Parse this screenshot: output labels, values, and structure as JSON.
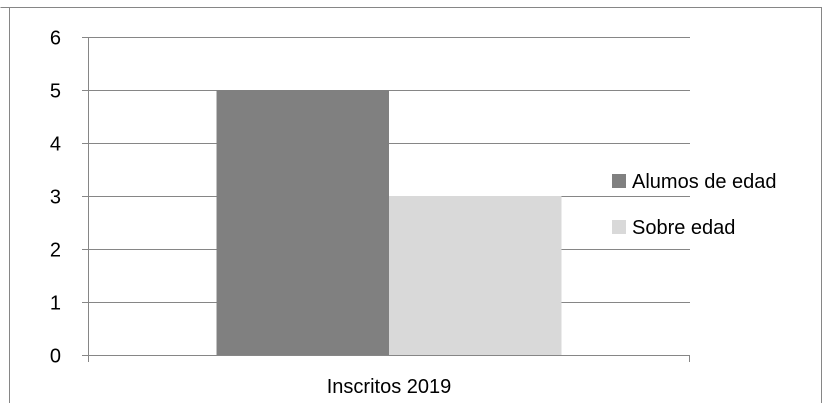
{
  "chart_data": {
    "type": "bar",
    "categories": [
      "Inscritos 2019"
    ],
    "series": [
      {
        "name": "Alumos de edad",
        "values": [
          5
        ],
        "color": "#808080"
      },
      {
        "name": "Sobre edad",
        "values": [
          3
        ],
        "color": "#d9d9d9"
      }
    ],
    "title": "",
    "xlabel": "",
    "ylabel": "",
    "ylim": [
      0,
      6
    ],
    "yticks": [
      "0",
      "1",
      "2",
      "3",
      "4",
      "5",
      "6"
    ],
    "grid": true,
    "legend_position": "right",
    "colors": {
      "gridline": "#868686",
      "frame": "#868686"
    }
  }
}
